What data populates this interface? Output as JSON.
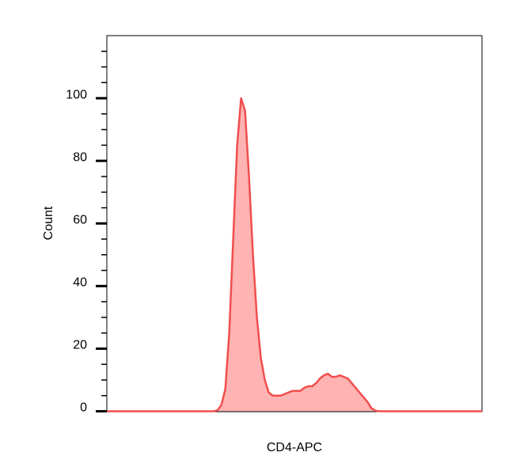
{
  "chart_data": {
    "type": "area",
    "x_label": "CD4-APC",
    "y_label": "Count",
    "values": [
      0,
      0,
      0,
      0,
      0,
      0,
      0,
      0,
      0,
      0,
      0,
      0,
      0,
      0,
      0,
      0,
      0,
      0,
      0,
      0,
      0,
      0,
      0,
      0,
      0,
      0,
      0,
      0,
      0.3,
      2,
      7,
      25,
      55,
      85,
      100,
      96,
      75,
      50,
      30,
      17,
      10,
      6,
      5,
      5,
      5,
      5.5,
      6,
      6.5,
      6.5,
      6.5,
      7.5,
      8,
      8,
      9,
      10.5,
      11.5,
      12,
      11,
      11,
      11.5,
      11,
      10.5,
      9,
      7.5,
      6,
      4.5,
      3,
      1,
      0.2,
      0,
      0,
      0,
      0,
      0,
      0,
      0,
      0,
      0,
      0,
      0,
      0,
      0,
      0,
      0,
      0,
      0,
      0,
      0,
      0,
      0,
      0,
      0,
      0,
      0,
      0,
      0
    ],
    "line_color": "#f04e4e",
    "fill_color": "#ffb3b3",
    "ylim": [
      0,
      120
    ],
    "yticks": [
      0,
      20,
      40,
      60,
      80,
      100
    ],
    "minor_yticks": [
      5,
      10,
      15,
      25,
      30,
      35,
      45,
      50,
      55,
      65,
      70,
      75,
      85,
      90,
      95,
      105,
      110,
      115
    ]
  }
}
